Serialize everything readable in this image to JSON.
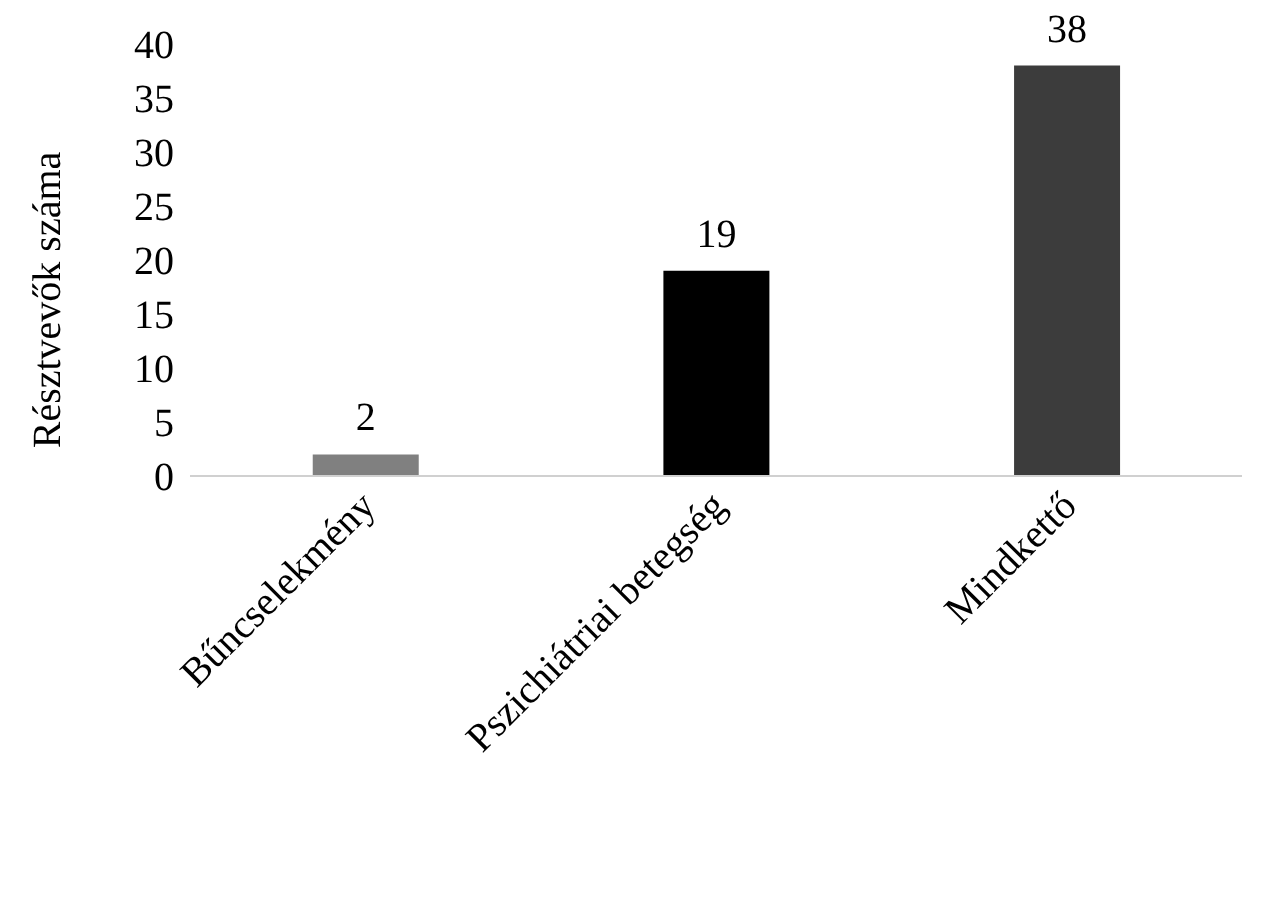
{
  "chart_data": {
    "type": "bar",
    "ylabel": "Résztvevők száma",
    "categories": [
      "Bűncselekmény",
      "Pszichiátriai betegség",
      "Mindkettő"
    ],
    "values": [
      2,
      19,
      38
    ],
    "colors": [
      "#808080",
      "#000000",
      "#3c3c3c"
    ],
    "ylim": [
      0,
      40
    ],
    "yticks": [
      0,
      5,
      10,
      15,
      20,
      25,
      30,
      35,
      40
    ],
    "data_labels": true,
    "grid": false,
    "legend": false
  }
}
